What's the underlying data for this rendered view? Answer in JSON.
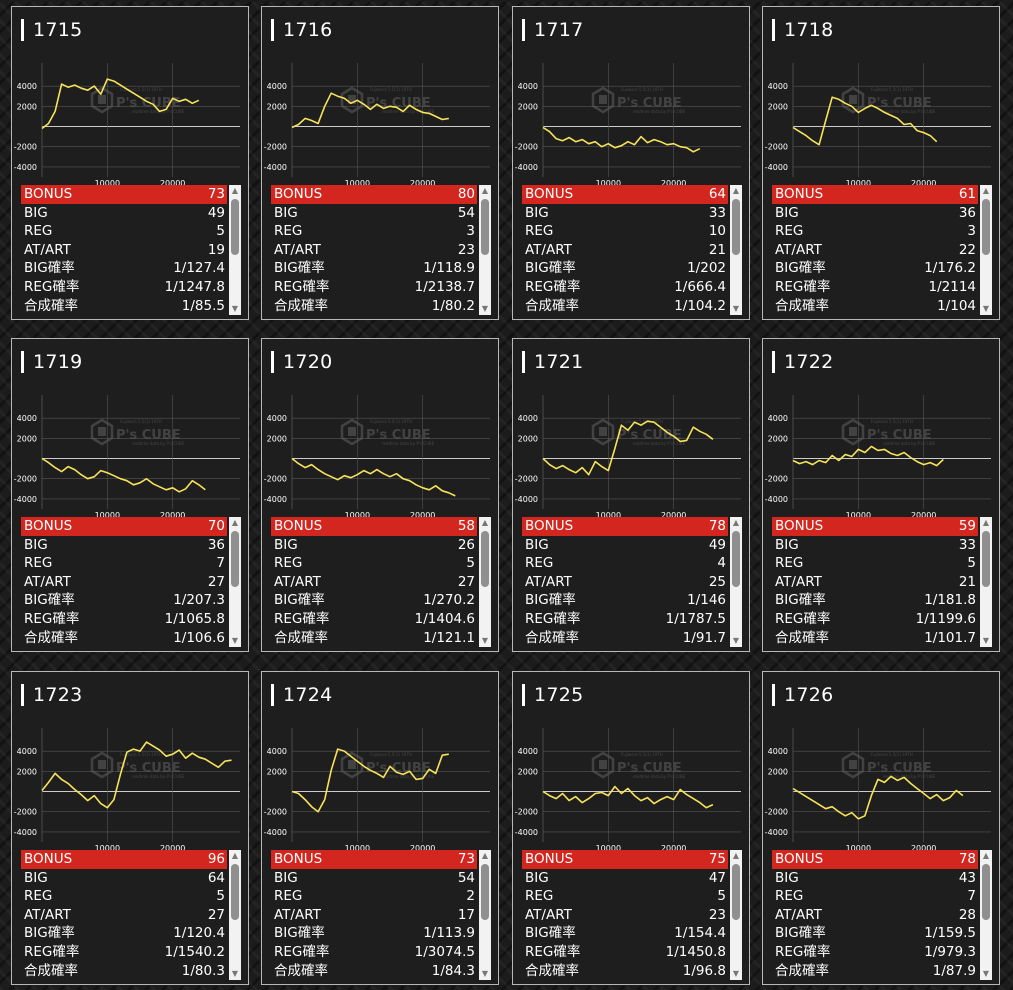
{
  "labels": {
    "bonus": "BONUS",
    "big": "BIG",
    "reg": "REG",
    "at": "AT/ART",
    "big_rate": "BIG確率",
    "reg_rate": "REG確率",
    "combined_rate": "合成確率"
  },
  "watermark": {
    "logo": "P's CUBE",
    "small": "Fujiwara 5.5(1) 19TH",
    "sub": "realtime data by P's CUBE"
  },
  "colors": {
    "line": "#f7e35a",
    "bonus_bar": "#d3261f",
    "grid": "#555555",
    "axis": "#cccccc"
  },
  "chart_axes": {
    "y_ticks": [
      4000,
      2000,
      0,
      -2000,
      -4000
    ],
    "x_ticks": [
      10000,
      20000
    ],
    "y_tick_labels": [
      "4000",
      "2000",
      "",
      "-2000",
      "-4000"
    ],
    "x_tick_labels": [
      "10000",
      "20000"
    ]
  },
  "machines": [
    {
      "id": "1715",
      "stats": {
        "bonus": "73",
        "big": "49",
        "reg": "5",
        "at": "19",
        "big_rate": "1/127.4",
        "reg_rate": "1/1247.8",
        "combined_rate": "1/85.5"
      },
      "chart_data": {
        "type": "line",
        "x": [
          0,
          1000,
          2000,
          3000,
          4000,
          5000,
          6000,
          7000,
          8000,
          9000,
          10000,
          11000,
          12000,
          13000,
          14000,
          15000,
          16000,
          17000,
          18000,
          19000,
          20000,
          21000,
          22000,
          23000,
          24000
        ],
        "y": [
          -200,
          300,
          1500,
          4200,
          3900,
          4100,
          3800,
          3600,
          4000,
          3200,
          4700,
          4500,
          4100,
          3700,
          3300,
          2900,
          2500,
          2200,
          1500,
          1700,
          2800,
          2500,
          2700,
          2300,
          2600
        ]
      }
    },
    {
      "id": "1716",
      "stats": {
        "bonus": "80",
        "big": "54",
        "reg": "3",
        "at": "23",
        "big_rate": "1/118.9",
        "reg_rate": "1/2138.7",
        "combined_rate": "1/80.2"
      },
      "chart_data": {
        "type": "line",
        "x": [
          0,
          1000,
          2000,
          3000,
          4000,
          5000,
          6000,
          7000,
          8000,
          9000,
          10000,
          11000,
          12000,
          13000,
          14000,
          15000,
          16000,
          17000,
          18000,
          19000,
          20000,
          21000,
          22000,
          23000,
          24000
        ],
        "y": [
          -100,
          200,
          800,
          600,
          300,
          2000,
          3300,
          3000,
          2800,
          2300,
          2600,
          2200,
          1700,
          2200,
          1800,
          2000,
          1900,
          1500,
          2100,
          1700,
          1400,
          1300,
          1000,
          700,
          800
        ]
      }
    },
    {
      "id": "1717",
      "stats": {
        "bonus": "64",
        "big": "33",
        "reg": "10",
        "at": "21",
        "big_rate": "1/202",
        "reg_rate": "1/666.4",
        "combined_rate": "1/104.2"
      },
      "chart_data": {
        "type": "line",
        "x": [
          0,
          1000,
          2000,
          3000,
          4000,
          5000,
          6000,
          7000,
          8000,
          9000,
          10000,
          11000,
          12000,
          13000,
          14000,
          15000,
          16000,
          17000,
          18000,
          19000,
          20000,
          21000,
          22000,
          23000,
          24000
        ],
        "y": [
          -100,
          -500,
          -1200,
          -1400,
          -1100,
          -1500,
          -1300,
          -1700,
          -1500,
          -2000,
          -1700,
          -2100,
          -1900,
          -1500,
          -1800,
          -1000,
          -1600,
          -1300,
          -1500,
          -1800,
          -1700,
          -2000,
          -2100,
          -2500,
          -2200
        ]
      }
    },
    {
      "id": "1718",
      "stats": {
        "bonus": "61",
        "big": "36",
        "reg": "3",
        "at": "22",
        "big_rate": "1/176.2",
        "reg_rate": "1/2114",
        "combined_rate": "1/104"
      },
      "chart_data": {
        "type": "line",
        "x": [
          0,
          1000,
          2000,
          3000,
          4000,
          5000,
          6000,
          7000,
          8000,
          9000,
          10000,
          11000,
          12000,
          13000,
          14000,
          15000,
          16000,
          17000,
          18000,
          19000,
          20000,
          21000,
          22000
        ],
        "y": [
          -100,
          -500,
          -900,
          -1400,
          -1800,
          600,
          2900,
          2700,
          2300,
          2000,
          1400,
          1800,
          2100,
          1800,
          1400,
          1100,
          800,
          200,
          300,
          -400,
          -600,
          -900,
          -1500
        ]
      }
    },
    {
      "id": "1719",
      "stats": {
        "bonus": "70",
        "big": "36",
        "reg": "7",
        "at": "27",
        "big_rate": "1/207.3",
        "reg_rate": "1/1065.8",
        "combined_rate": "1/106.6"
      },
      "chart_data": {
        "type": "line",
        "x": [
          0,
          1000,
          2000,
          3000,
          4000,
          5000,
          6000,
          7000,
          8000,
          9000,
          10000,
          11000,
          12000,
          13000,
          14000,
          15000,
          16000,
          17000,
          18000,
          19000,
          20000,
          21000,
          22000,
          23000,
          24000,
          25000
        ],
        "y": [
          0,
          -400,
          -900,
          -1300,
          -800,
          -1100,
          -1600,
          -2000,
          -1800,
          -1200,
          -1400,
          -1700,
          -2000,
          -2200,
          -2600,
          -2400,
          -2000,
          -2500,
          -2800,
          -3100,
          -2900,
          -3300,
          -3000,
          -2200,
          -2600,
          -3100
        ]
      }
    },
    {
      "id": "1720",
      "stats": {
        "bonus": "58",
        "big": "26",
        "reg": "5",
        "at": "27",
        "big_rate": "1/270.2",
        "reg_rate": "1/1404.6",
        "combined_rate": "1/121.1"
      },
      "chart_data": {
        "type": "line",
        "x": [
          0,
          1000,
          2000,
          3000,
          4000,
          5000,
          6000,
          7000,
          8000,
          9000,
          10000,
          11000,
          12000,
          13000,
          14000,
          15000,
          16000,
          17000,
          18000,
          19000,
          20000,
          21000,
          22000,
          23000,
          24000,
          25000
        ],
        "y": [
          0,
          -500,
          -900,
          -600,
          -1100,
          -1500,
          -1800,
          -2100,
          -1700,
          -1900,
          -1600,
          -1200,
          -1500,
          -1100,
          -1500,
          -1800,
          -1500,
          -2000,
          -2200,
          -2600,
          -2900,
          -3100,
          -2700,
          -3200,
          -3400,
          -3700
        ]
      }
    },
    {
      "id": "1721",
      "stats": {
        "bonus": "78",
        "big": "49",
        "reg": "4",
        "at": "25",
        "big_rate": "1/146",
        "reg_rate": "1/1787.5",
        "combined_rate": "1/91.7"
      },
      "chart_data": {
        "type": "line",
        "x": [
          0,
          1000,
          2000,
          3000,
          4000,
          5000,
          6000,
          7000,
          8000,
          9000,
          10000,
          11000,
          12000,
          13000,
          14000,
          15000,
          16000,
          17000,
          18000,
          19000,
          20000,
          21000,
          22000,
          23000,
          24000,
          25000,
          26000
        ],
        "y": [
          0,
          -600,
          -1000,
          -700,
          -1100,
          -1400,
          -900,
          -1600,
          -300,
          -800,
          -1200,
          1000,
          3300,
          2800,
          3600,
          3300,
          3700,
          3600,
          3100,
          2600,
          2200,
          1700,
          1800,
          3100,
          2700,
          2400,
          1900
        ]
      }
    },
    {
      "id": "1722",
      "stats": {
        "bonus": "59",
        "big": "33",
        "reg": "5",
        "at": "21",
        "big_rate": "1/181.8",
        "reg_rate": "1/1199.6",
        "combined_rate": "1/101.7"
      },
      "chart_data": {
        "type": "line",
        "x": [
          0,
          1000,
          2000,
          3000,
          4000,
          5000,
          6000,
          7000,
          8000,
          9000,
          10000,
          11000,
          12000,
          13000,
          14000,
          15000,
          16000,
          17000,
          18000,
          19000,
          20000,
          21000,
          22000,
          23000
        ],
        "y": [
          -200,
          -500,
          -300,
          -600,
          -200,
          -400,
          300,
          -200,
          400,
          200,
          900,
          600,
          1200,
          800,
          900,
          500,
          300,
          600,
          100,
          -300,
          -600,
          -400,
          -700,
          -100
        ]
      }
    },
    {
      "id": "1723",
      "stats": {
        "bonus": "96",
        "big": "64",
        "reg": "5",
        "at": "27",
        "big_rate": "1/120.4",
        "reg_rate": "1/1540.2",
        "combined_rate": "1/80.3"
      },
      "chart_data": {
        "type": "line",
        "x": [
          0,
          1000,
          2000,
          3000,
          4000,
          5000,
          6000,
          7000,
          8000,
          9000,
          10000,
          11000,
          12000,
          13000,
          14000,
          15000,
          16000,
          17000,
          18000,
          19000,
          20000,
          21000,
          22000,
          23000,
          24000,
          25000,
          26000,
          27000,
          28000,
          29000
        ],
        "y": [
          100,
          900,
          1800,
          1200,
          800,
          200,
          -300,
          -900,
          -400,
          -1200,
          -1600,
          -800,
          1700,
          3900,
          4200,
          4000,
          4900,
          4500,
          4100,
          3500,
          3700,
          4100,
          3300,
          3800,
          3400,
          3200,
          2800,
          2400,
          3000,
          3100
        ]
      }
    },
    {
      "id": "1724",
      "stats": {
        "bonus": "73",
        "big": "54",
        "reg": "2",
        "at": "17",
        "big_rate": "1/113.9",
        "reg_rate": "1/3074.5",
        "combined_rate": "1/84.3"
      },
      "chart_data": {
        "type": "line",
        "x": [
          0,
          1000,
          2000,
          3000,
          4000,
          5000,
          6000,
          7000,
          8000,
          9000,
          10000,
          11000,
          12000,
          13000,
          14000,
          15000,
          16000,
          17000,
          18000,
          19000,
          20000,
          21000,
          22000,
          23000,
          24000
        ],
        "y": [
          0,
          -200,
          -800,
          -1500,
          -2000,
          -800,
          2100,
          4200,
          4000,
          3500,
          3000,
          2500,
          2100,
          1800,
          1400,
          2500,
          1900,
          1700,
          2000,
          1200,
          1300,
          2200,
          1800,
          3600,
          3700
        ]
      }
    },
    {
      "id": "1725",
      "stats": {
        "bonus": "75",
        "big": "47",
        "reg": "5",
        "at": "23",
        "big_rate": "1/154.4",
        "reg_rate": "1/1450.8",
        "combined_rate": "1/96.8"
      },
      "chart_data": {
        "type": "line",
        "x": [
          0,
          1000,
          2000,
          3000,
          4000,
          5000,
          6000,
          7000,
          8000,
          9000,
          10000,
          11000,
          12000,
          13000,
          14000,
          15000,
          16000,
          17000,
          18000,
          19000,
          20000,
          21000,
          22000,
          23000,
          24000,
          25000,
          26000
        ],
        "y": [
          0,
          -400,
          -700,
          -200,
          -900,
          -500,
          -1100,
          -700,
          -200,
          -100,
          -400,
          500,
          -200,
          300,
          -400,
          -900,
          -600,
          -1200,
          -800,
          -500,
          -800,
          200,
          -300,
          -700,
          -1100,
          -1600,
          -1300
        ]
      }
    },
    {
      "id": "1726",
      "stats": {
        "bonus": "78",
        "big": "43",
        "reg": "7",
        "at": "28",
        "big_rate": "1/159.5",
        "reg_rate": "1/979.3",
        "combined_rate": "1/87.9"
      },
      "chart_data": {
        "type": "line",
        "x": [
          0,
          1000,
          2000,
          3000,
          4000,
          5000,
          6000,
          7000,
          8000,
          9000,
          10000,
          11000,
          12000,
          13000,
          14000,
          15000,
          16000,
          17000,
          18000,
          19000,
          20000,
          21000,
          22000,
          23000,
          24000,
          25000,
          26000
        ],
        "y": [
          300,
          -100,
          -500,
          -900,
          -1300,
          -1700,
          -1500,
          -2000,
          -2400,
          -2100,
          -2700,
          -2400,
          -400,
          1200,
          900,
          1500,
          1100,
          1400,
          800,
          300,
          -200,
          -700,
          -300,
          -900,
          -600,
          100,
          -400
        ]
      }
    }
  ]
}
